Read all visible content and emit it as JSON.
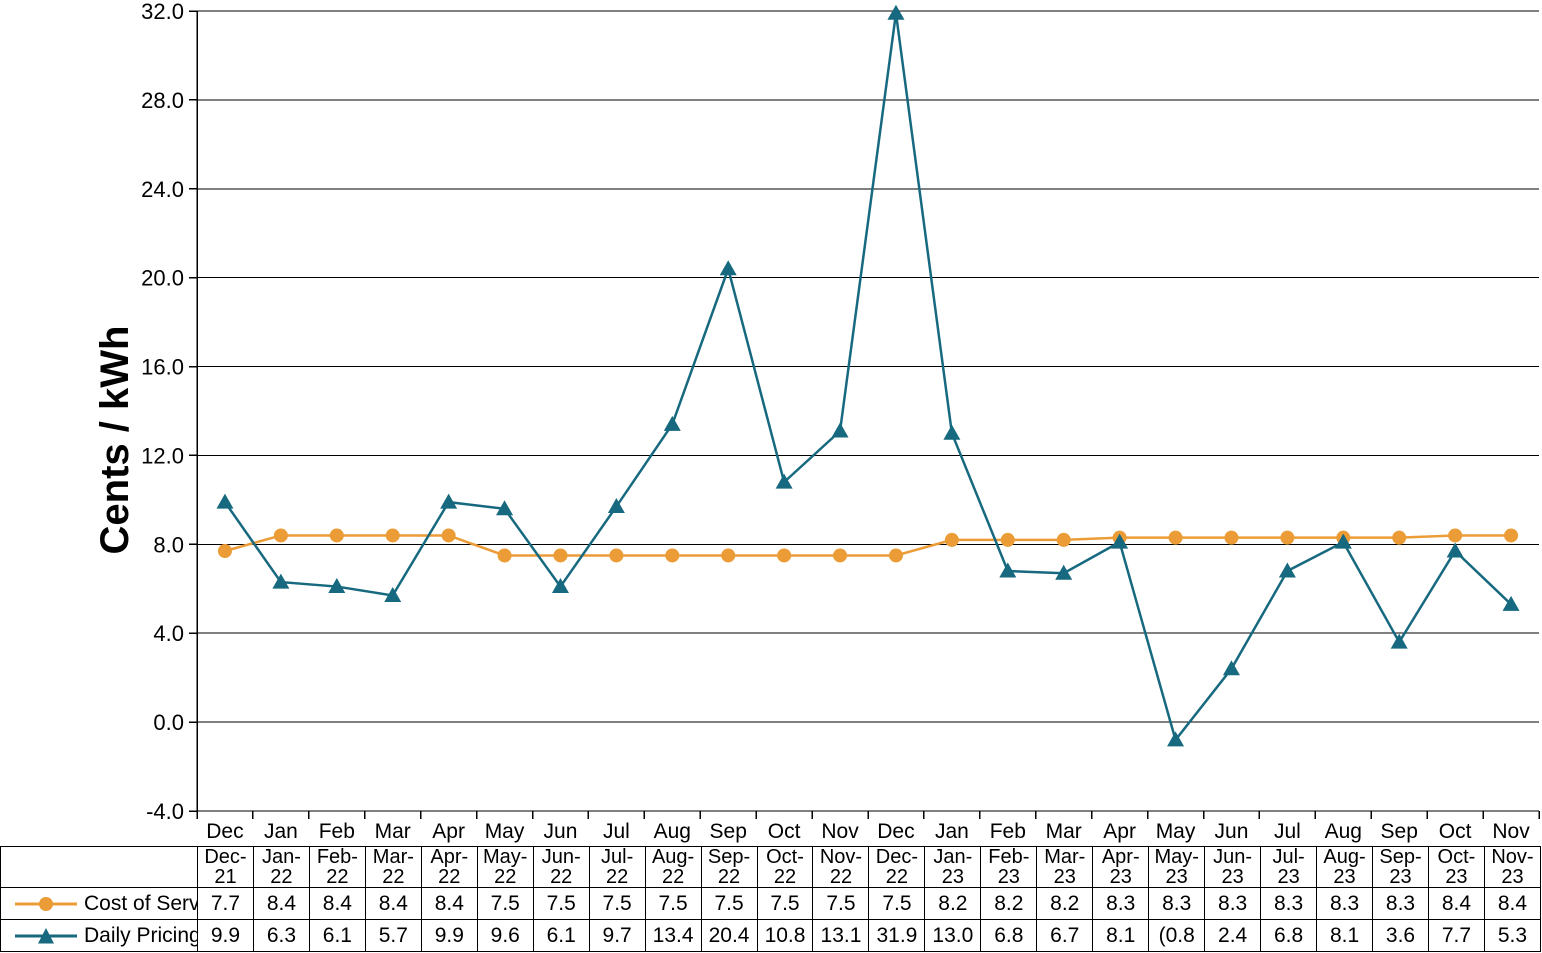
{
  "chart_data": {
    "type": "line",
    "title": "",
    "xlabel": "",
    "ylabel": "Cents / kWh",
    "ylim": [
      -4.0,
      32.0
    ],
    "ytick_step": 4.0,
    "yticks": [
      32,
      28,
      24,
      20,
      16,
      12,
      8,
      4,
      0,
      -4
    ],
    "ytick_labels": [
      "32.0",
      "28.0",
      "24.0",
      "20.0",
      "16.0",
      "12.0",
      "8.0",
      "4.0",
      "0.0",
      "-4.0"
    ],
    "grid": true,
    "legend_position": "table-left",
    "x_month_labels": [
      "Dec",
      "Jan",
      "Feb",
      "Mar",
      "Apr",
      "May",
      "Jun",
      "Jul",
      "Aug",
      "Sep",
      "Oct",
      "Nov",
      "Dec",
      "Jan",
      "Feb",
      "Mar",
      "Apr",
      "May",
      "Jun",
      "Jul",
      "Aug",
      "Sep",
      "Oct",
      "Nov"
    ],
    "categories": [
      "Dec-21",
      "Jan-22",
      "Feb-22",
      "Mar-22",
      "Apr-22",
      "May-22",
      "Jun-22",
      "Jul-22",
      "Aug-22",
      "Sep-22",
      "Oct-22",
      "Nov-22",
      "Dec-22",
      "Jan-23",
      "Feb-23",
      "Mar-23",
      "Apr-23",
      "May-23",
      "Jun-23",
      "Jul-23",
      "Aug-23",
      "Sep-23",
      "Oct-23",
      "Nov-23"
    ],
    "series": [
      {
        "name": "Cost of Service",
        "marker": "circle",
        "color": "#EC9C36",
        "values": [
          7.7,
          8.4,
          8.4,
          8.4,
          8.4,
          7.5,
          7.5,
          7.5,
          7.5,
          7.5,
          7.5,
          7.5,
          7.5,
          8.2,
          8.2,
          8.2,
          8.3,
          8.3,
          8.3,
          8.3,
          8.3,
          8.3,
          8.4,
          8.4
        ]
      },
      {
        "name": "Daily Pricing",
        "marker": "triangle",
        "color": "#17697F",
        "values": [
          9.9,
          6.3,
          6.1,
          5.7,
          9.9,
          9.6,
          6.1,
          9.7,
          13.4,
          20.4,
          10.8,
          13.1,
          31.9,
          13.0,
          6.8,
          6.7,
          8.1,
          -0.8,
          2.4,
          6.8,
          8.1,
          3.6,
          7.7,
          5.3
        ]
      }
    ]
  },
  "table": {
    "rows": [
      {
        "label": "Cost of Service",
        "display_values": [
          "7.7",
          "8.4",
          "8.4",
          "8.4",
          "8.4",
          "7.5",
          "7.5",
          "7.5",
          "7.5",
          "7.5",
          "7.5",
          "7.5",
          "7.5",
          "8.2",
          "8.2",
          "8.2",
          "8.3",
          "8.3",
          "8.3",
          "8.3",
          "8.3",
          "8.3",
          "8.4",
          "8.4"
        ]
      },
      {
        "label": "Daily Pricing",
        "display_values": [
          "9.9",
          "6.3",
          "6.1",
          "5.7",
          "9.9",
          "9.6",
          "6.1",
          "9.7",
          "13.4",
          "20.4",
          "10.8",
          "13.1",
          "31.9",
          "13.0",
          "6.8",
          "6.7",
          "8.1",
          "(0.8",
          "2.4",
          "6.8",
          "8.1",
          "3.6",
          "7.7",
          "5.3"
        ]
      }
    ]
  },
  "colors": {
    "cost_of_service": "#EC9C36",
    "daily_pricing": "#17697F",
    "axis": "#000000",
    "grid": "#000000",
    "text": "#000000",
    "background": "#FFFFFF"
  }
}
